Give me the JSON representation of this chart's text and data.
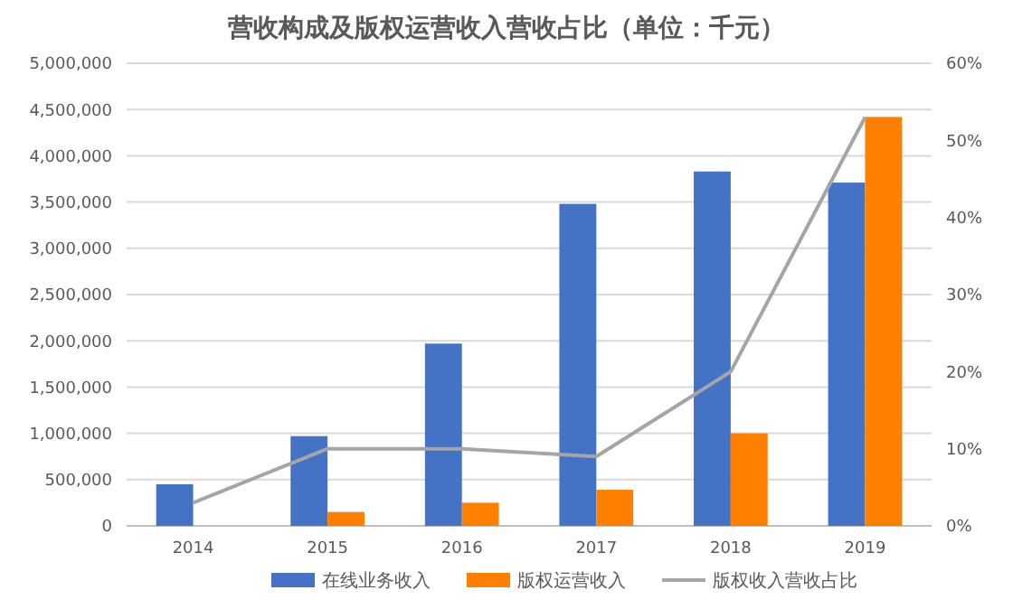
{
  "chart_data": {
    "type": "bar",
    "title": "营收构成及版权运营收入营收占比（单位：千元）",
    "categories": [
      "2014",
      "2015",
      "2016",
      "2017",
      "2018",
      "2019"
    ],
    "series": [
      {
        "name": "在线业务收入",
        "color": "#4472c4",
        "values": [
          450000,
          970000,
          1970000,
          3480000,
          3830000,
          3710000
        ]
      },
      {
        "name": "版权运营收入",
        "color": "#ff7f00",
        "values": [
          null,
          150000,
          250000,
          390000,
          1000000,
          4420000
        ]
      },
      {
        "name": "版权收入营收占比",
        "type": "line",
        "axis": "y2",
        "color": "#a5a5a5",
        "values": [
          3,
          10,
          10,
          9,
          20,
          53
        ]
      }
    ],
    "ylim": [
      0,
      5000000
    ],
    "yticks": [
      {
        "value": 0,
        "label": "0"
      },
      {
        "value": 500000,
        "label": "500,000"
      },
      {
        "value": 1000000,
        "label": "1,000,000"
      },
      {
        "value": 1500000,
        "label": "1,500,000"
      },
      {
        "value": 2000000,
        "label": "2,000,000"
      },
      {
        "value": 2500000,
        "label": "2,500,000"
      },
      {
        "value": 3000000,
        "label": "3,000,000"
      },
      {
        "value": 3500000,
        "label": "3,500,000"
      },
      {
        "value": 4000000,
        "label": "4,000,000"
      },
      {
        "value": 4500000,
        "label": "4,500,000"
      },
      {
        "value": 5000000,
        "label": "5,000,000"
      }
    ],
    "y2lim": [
      0,
      60
    ],
    "y2ticks": [
      {
        "value": 0,
        "label": "0%"
      },
      {
        "value": 10,
        "label": "10%"
      },
      {
        "value": 20,
        "label": "20%"
      },
      {
        "value": 30,
        "label": "30%"
      },
      {
        "value": 40,
        "label": "40%"
      },
      {
        "value": 50,
        "label": "50%"
      },
      {
        "value": 60,
        "label": "60%"
      }
    ],
    "grid": "y",
    "legend": "bottom",
    "marker": "none",
    "line_style": "solid"
  }
}
